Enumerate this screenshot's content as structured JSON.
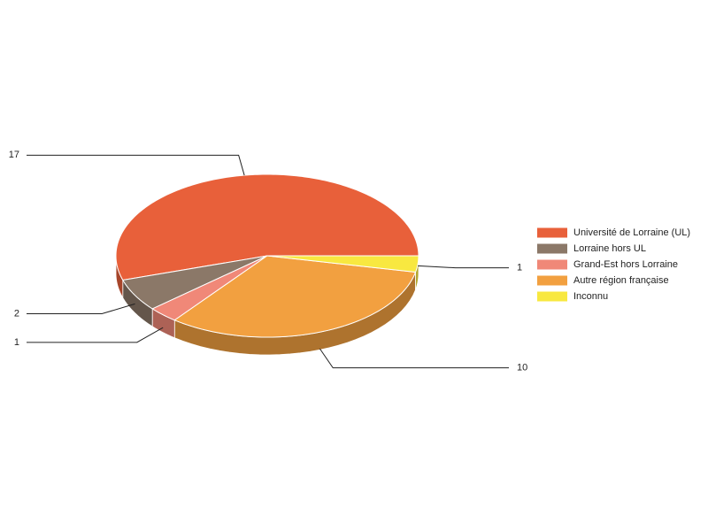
{
  "chart_data": {
    "type": "pie",
    "categories": [
      "Université de Lorraine (UL)",
      "Lorraine hors UL",
      "Grand-Est hors Lorraine",
      "Autre région française",
      "Inconnu"
    ],
    "values": [
      17,
      2,
      1,
      10,
      1
    ],
    "colors": [
      "#e8603a",
      "#8b7868",
      "#f08878",
      "#f2a040",
      "#f8e840"
    ],
    "legend": "right"
  }
}
